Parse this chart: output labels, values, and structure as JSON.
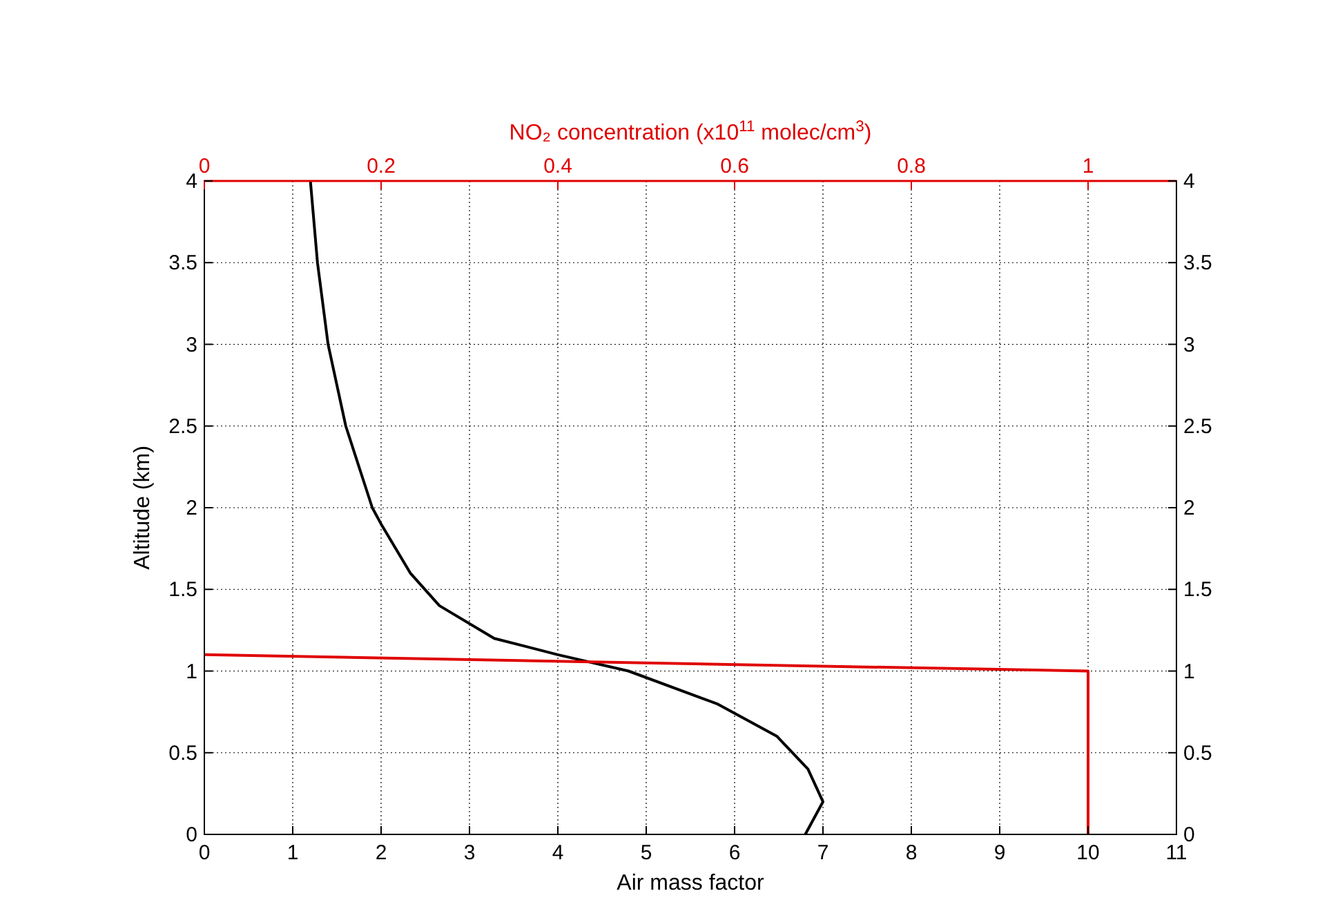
{
  "chart_data": {
    "type": "line",
    "xlabel": "Air mass factor",
    "x2label": "NO₂ concentration (x10$^{11}$ molec/cm$^{3}$)",
    "ylabel": "Altitude (km)",
    "xlim": [
      0,
      11
    ],
    "xticks": [
      0,
      1,
      2,
      3,
      4,
      5,
      6,
      7,
      8,
      9,
      10,
      11
    ],
    "x2lim": [
      0,
      1.1
    ],
    "x2ticks": [
      0,
      0.2,
      0.4,
      0.6,
      0.8,
      1
    ],
    "ylim": [
      0,
      4
    ],
    "yticks": [
      0,
      0.5,
      1,
      1.5,
      2,
      2.5,
      3,
      3.5,
      4
    ],
    "y2lim": [
      0,
      4
    ],
    "y2ticks": [
      0,
      0.5,
      1,
      1.5,
      2,
      2.5,
      3,
      3.5,
      4
    ],
    "grid": true,
    "line_style": "solid",
    "marker": "none",
    "series": [
      {
        "color": "#000000",
        "x": [
          1.2,
          1.28,
          1.4,
          1.6,
          1.9,
          2.0,
          2.33,
          2.66,
          3.28,
          4.0,
          4.8,
          5.8,
          6.48,
          6.83,
          7.0,
          6.8
        ],
        "values": [
          4,
          3.5,
          3,
          2.5,
          2,
          1.9,
          1.6,
          1.4,
          1.2,
          1.1,
          1.0,
          0.8,
          0.6,
          0.4,
          0.2,
          0
        ]
      },
      {
        "color": "#e00000",
        "axis": "x2",
        "x": [
          0,
          1,
          1
        ],
        "values": [
          1.1,
          1.0,
          0
        ]
      }
    ]
  }
}
